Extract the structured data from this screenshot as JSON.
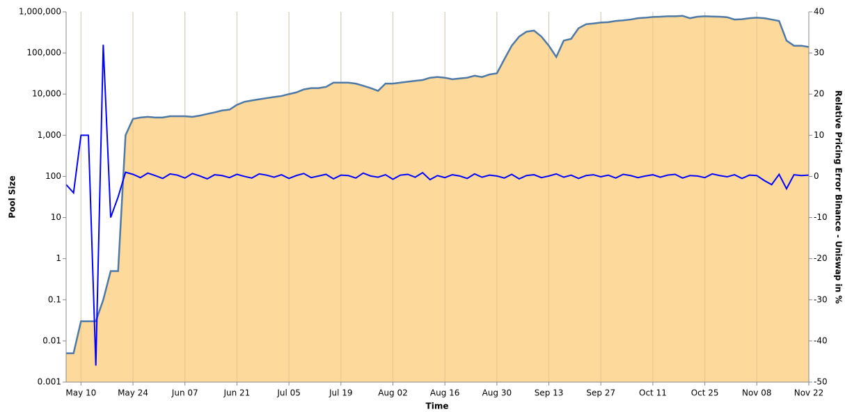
{
  "chart_data": {
    "type": "area-line",
    "xlabel": "Time",
    "ylabel": "Pool Size",
    "y2label": "Relative Pricing Error Binance - Uniswap in %",
    "x": [
      "May 06",
      "May 08",
      "May 10",
      "May 12",
      "May 14",
      "May 16",
      "May 18",
      "May 20",
      "May 22",
      "May 24",
      "May 26",
      "May 28",
      "May 30",
      "Jun 01",
      "Jun 03",
      "Jun 05",
      "Jun 07",
      "Jun 09",
      "Jun 11",
      "Jun 13",
      "Jun 15",
      "Jun 17",
      "Jun 19",
      "Jun 21",
      "Jun 23",
      "Jun 25",
      "Jun 27",
      "Jun 29",
      "Jul 01",
      "Jul 03",
      "Jul 05",
      "Jul 07",
      "Jul 09",
      "Jul 11",
      "Jul 13",
      "Jul 15",
      "Jul 17",
      "Jul 19",
      "Jul 21",
      "Jul 23",
      "Jul 25",
      "Jul 27",
      "Jul 29",
      "Jul 31",
      "Aug 02",
      "Aug 04",
      "Aug 06",
      "Aug 08",
      "Aug 10",
      "Aug 12",
      "Aug 14",
      "Aug 16",
      "Aug 18",
      "Aug 20",
      "Aug 22",
      "Aug 24",
      "Aug 26",
      "Aug 28",
      "Aug 30",
      "Sep 01",
      "Sep 03",
      "Sep 05",
      "Sep 07",
      "Sep 09",
      "Sep 11",
      "Sep 13",
      "Sep 15",
      "Sep 17",
      "Sep 19",
      "Sep 21",
      "Sep 23",
      "Sep 25",
      "Sep 27",
      "Sep 29",
      "Oct 01",
      "Oct 03",
      "Oct 05",
      "Oct 07",
      "Oct 09",
      "Oct 11",
      "Oct 13",
      "Oct 15",
      "Oct 17",
      "Oct 19",
      "Oct 21",
      "Oct 23",
      "Oct 25",
      "Oct 27",
      "Oct 29",
      "Oct 31",
      "Nov 02",
      "Nov 04",
      "Nov 06",
      "Nov 08",
      "Nov 10",
      "Nov 12",
      "Nov 14",
      "Nov 16",
      "Nov 18",
      "Nov 20",
      "Nov 22"
    ],
    "xticks": [
      "May 10",
      "May 24",
      "Jun 07",
      "Jun 21",
      "Jul 05",
      "Jul 19",
      "Aug 02",
      "Aug 16",
      "Aug 30",
      "Sep 13",
      "Sep 27",
      "Oct 11",
      "Oct 25",
      "Nov 08",
      "Nov 22"
    ],
    "series": [
      {
        "name": "Pool Size",
        "color": "#4e79a7",
        "fill": "#fdd99b",
        "axis": "y",
        "values": [
          0.005,
          0.005,
          0.03,
          0.03,
          0.03,
          0.1,
          0.5,
          0.5,
          1000,
          2500,
          2700,
          2800,
          2700,
          2700,
          2900,
          2900,
          2900,
          2800,
          3000,
          3300,
          3600,
          4000,
          4200,
          5500,
          6500,
          7000,
          7500,
          8000,
          8500,
          9000,
          10000,
          11000,
          13000,
          14000,
          14000,
          15000,
          19000,
          19000,
          19000,
          18000,
          16000,
          14000,
          12000,
          18000,
          18000,
          19000,
          20000,
          21000,
          22000,
          25000,
          26000,
          25000,
          23000,
          24000,
          25000,
          28000,
          26000,
          30000,
          32000,
          70000,
          150000,
          250000,
          330000,
          350000,
          250000,
          150000,
          80000,
          200000,
          220000,
          400000,
          500000,
          520000,
          550000,
          560000,
          600000,
          620000,
          650000,
          700000,
          720000,
          750000,
          760000,
          780000,
          780000,
          800000,
          700000,
          760000,
          780000,
          770000,
          760000,
          740000,
          650000,
          660000,
          700000,
          720000,
          700000,
          650000,
          600000,
          200000,
          150000,
          150000,
          140000
        ]
      },
      {
        "name": "Relative Pricing Error",
        "color": "#0000ff",
        "axis": "y2",
        "values": [
          -2,
          -4,
          10,
          10,
          -46,
          32,
          -10,
          -5,
          1,
          0.5,
          -0.3,
          0.8,
          0.2,
          -0.5,
          0.6,
          0.3,
          -0.4,
          0.7,
          0.1,
          -0.6,
          0.4,
          0.2,
          -0.3,
          0.5,
          0,
          -0.4,
          0.6,
          0.3,
          -0.2,
          0.4,
          -0.5,
          0.2,
          0.7,
          -0.3,
          0.1,
          0.5,
          -0.6,
          0.3,
          0.2,
          -0.4,
          0.8,
          0.1,
          -0.2,
          0.4,
          -0.7,
          0.3,
          0.5,
          -0.2,
          0.9,
          -0.8,
          0.2,
          -0.3,
          0.4,
          0.1,
          -0.5,
          0.6,
          -0.2,
          0.3,
          0.1,
          -0.4,
          0.5,
          -0.6,
          0.2,
          0.4,
          -0.3,
          0.1,
          0.6,
          -0.2,
          0.3,
          -0.5,
          0.2,
          0.4,
          -0.1,
          0.3,
          -0.4,
          0.5,
          0.2,
          -0.3,
          0.1,
          0.4,
          -0.2,
          0.3,
          0.5,
          -0.4,
          0.2,
          0.1,
          -0.3,
          0.6,
          0.2,
          -0.1,
          0.4,
          -0.5,
          0.3,
          0.2,
          -1,
          -2,
          0.5,
          -3,
          0.4,
          0.2,
          0.3
        ]
      }
    ],
    "ylog": true,
    "ylim": [
      0.001,
      1000000
    ],
    "yticks": [
      0.001,
      0.01,
      0.1,
      1,
      10,
      100,
      {
        "value": 1000,
        "label": "1,000"
      },
      {
        "value": 10000,
        "label": "10,000"
      },
      {
        "value": 100000,
        "label": "100,000"
      },
      {
        "value": 1000000,
        "label": "1,000,000"
      }
    ],
    "y2lim": [
      -50,
      40
    ],
    "y2ticks": [
      -50,
      -40,
      -30,
      -20,
      -10,
      0,
      10,
      20,
      30,
      40
    ],
    "grid": true
  }
}
